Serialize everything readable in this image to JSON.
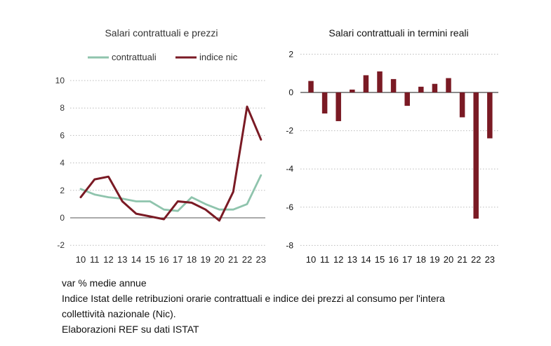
{
  "chart_data": [
    {
      "type": "line",
      "title": "Salari contrattuali e prezzi",
      "categories": [
        "10",
        "11",
        "12",
        "13",
        "14",
        "15",
        "16",
        "17",
        "18",
        "19",
        "20",
        "21",
        "22",
        "23"
      ],
      "series": [
        {
          "name": "contrattuali",
          "color": "#8fc4ad",
          "values": [
            2.1,
            1.7,
            1.5,
            1.4,
            1.2,
            1.2,
            0.6,
            0.5,
            1.5,
            1.0,
            0.6,
            0.6,
            1.0,
            3.1
          ]
        },
        {
          "name": "indice nic",
          "color": "#7a1a24",
          "values": [
            1.5,
            2.8,
            3.0,
            1.2,
            0.3,
            0.1,
            -0.1,
            1.2,
            1.1,
            0.6,
            -0.2,
            1.9,
            8.1,
            5.7
          ]
        }
      ],
      "yticks": [
        "10",
        "8",
        "6",
        "4",
        "2",
        "0",
        "-2"
      ],
      "ylim": [
        -2,
        10
      ],
      "legend_position": "top"
    },
    {
      "type": "bar",
      "title": "Salari contrattuali in termini reali",
      "categories": [
        "10",
        "11",
        "12",
        "13",
        "14",
        "15",
        "16",
        "17",
        "18",
        "19",
        "20",
        "21",
        "22",
        "23"
      ],
      "values": [
        0.6,
        -1.1,
        -1.5,
        0.15,
        0.9,
        1.1,
        0.7,
        -0.7,
        0.3,
        0.45,
        0.75,
        -1.3,
        -6.6,
        -2.4
      ],
      "color": "#7a1a24",
      "yticks": [
        "2",
        "0",
        "-2",
        "-4",
        "-6",
        "-8"
      ],
      "ylim": [
        -8,
        2
      ]
    }
  ],
  "notes": [
    "var % medie annue",
    "Indice Istat  delle retribuzioni orarie contrattuali e indice dei prezzi al consumo per l'intera",
    "collettività nazionale (Nic).",
    "Elaborazioni REF su dati ISTAT"
  ]
}
